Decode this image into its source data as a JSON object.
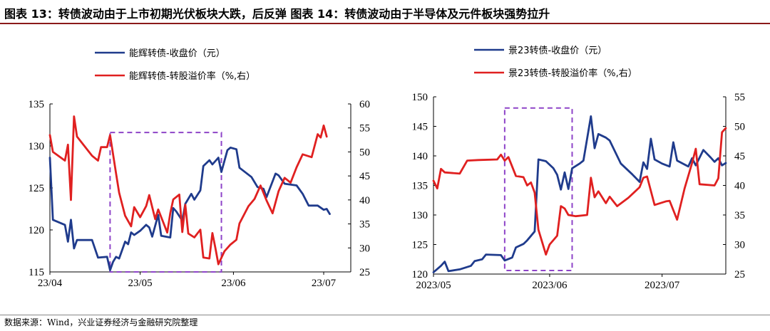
{
  "header": {
    "title": "图表 13：转债波动由于上市初期光伏板块大跌，后反弹 图表 14：转债波动由于半导体及元件板块强势拉升"
  },
  "footer": {
    "source": "数据来源：Wind，兴业证券经济与金融研究院整理"
  },
  "chart_data": [
    {
      "type": "line",
      "dual_axis": true,
      "legend_position": "top",
      "grid": false,
      "xlim": [
        "2023-04-01",
        "2023-07-10"
      ],
      "xticks": [
        {
          "date": "2023-04-01",
          "label": "23/04"
        },
        {
          "date": "2023-05-01",
          "label": "23/05"
        },
        {
          "date": "2023-06-01",
          "label": "23/06"
        },
        {
          "date": "2023-07-01",
          "label": "23/07"
        }
      ],
      "y_left": {
        "lim": [
          115,
          135
        ],
        "ticks": [
          115,
          120,
          125,
          130,
          135
        ]
      },
      "y_right": {
        "lim": [
          25,
          60
        ],
        "ticks": [
          25,
          30,
          35,
          40,
          45,
          50,
          55,
          60
        ]
      },
      "highlight_box": {
        "x": [
          "2023-04-21",
          "2023-05-28"
        ],
        "y_left": [
          115,
          131.6
        ]
      },
      "series": [
        {
          "name": "能辉转债-收盘价（元）",
          "axis": "left",
          "color": "#1F3B8C",
          "points": [
            [
              "2023-04-01",
              128.6
            ],
            [
              "2023-04-02",
              121.2
            ],
            [
              "2023-04-06",
              120.6
            ],
            [
              "2023-04-07",
              118.6
            ],
            [
              "2023-04-08",
              121.2
            ],
            [
              "2023-04-09",
              117.8
            ],
            [
              "2023-04-10",
              118.8
            ],
            [
              "2023-04-15",
              118.8
            ],
            [
              "2023-04-17",
              116.7
            ],
            [
              "2023-04-20",
              116.8
            ],
            [
              "2023-04-21",
              115.2
            ],
            [
              "2023-04-22",
              116.2
            ],
            [
              "2023-04-23",
              116.8
            ],
            [
              "2023-04-24",
              116.6
            ],
            [
              "2023-04-26",
              118.6
            ],
            [
              "2023-04-27",
              118.3
            ],
            [
              "2023-04-28",
              119.7
            ],
            [
              "2023-04-29",
              119.4
            ],
            [
              "2023-05-01",
              119.9
            ],
            [
              "2023-05-03",
              120.6
            ],
            [
              "2023-05-04",
              120.3
            ],
            [
              "2023-05-05",
              119.2
            ],
            [
              "2023-05-07",
              121.8
            ],
            [
              "2023-05-08",
              119.3
            ],
            [
              "2023-05-11",
              119.1
            ],
            [
              "2023-05-12",
              122.6
            ],
            [
              "2023-05-13",
              122.2
            ],
            [
              "2023-05-15",
              121.1
            ],
            [
              "2023-05-16",
              123.1
            ],
            [
              "2023-05-18",
              124.3
            ],
            [
              "2023-05-19",
              123.6
            ],
            [
              "2023-05-21",
              124.7
            ],
            [
              "2023-05-22",
              127.6
            ],
            [
              "2023-05-24",
              128.3
            ],
            [
              "2023-05-25",
              127.8
            ],
            [
              "2023-05-27",
              128.6
            ],
            [
              "2023-05-28",
              126.9
            ],
            [
              "2023-05-30",
              129.5
            ],
            [
              "2023-05-31",
              129.8
            ],
            [
              "2023-06-02",
              129.6
            ],
            [
              "2023-06-03",
              127.4
            ],
            [
              "2023-06-07",
              126.3
            ],
            [
              "2023-06-09",
              125.1
            ],
            [
              "2023-06-11",
              124.9
            ],
            [
              "2023-06-12",
              123.9
            ],
            [
              "2023-06-15",
              126.7
            ],
            [
              "2023-06-16",
              126.5
            ],
            [
              "2023-06-18",
              125.5
            ],
            [
              "2023-06-22",
              125.3
            ],
            [
              "2023-06-24",
              124.3
            ],
            [
              "2023-06-26",
              122.9
            ],
            [
              "2023-06-29",
              122.9
            ],
            [
              "2023-07-01",
              122.4
            ],
            [
              "2023-07-02",
              122.5
            ],
            [
              "2023-07-03",
              121.9
            ]
          ]
        },
        {
          "name": "能辉转债-转股溢价率（%,右）",
          "axis": "right",
          "color": "#E02020",
          "points": [
            [
              "2023-04-01",
              53.5
            ],
            [
              "2023-04-02",
              50.0
            ],
            [
              "2023-04-06",
              48.2
            ],
            [
              "2023-04-07",
              51.5
            ],
            [
              "2023-04-08",
              40.0
            ],
            [
              "2023-04-09",
              57.4
            ],
            [
              "2023-04-10",
              53.2
            ],
            [
              "2023-04-15",
              49.2
            ],
            [
              "2023-04-17",
              48.2
            ],
            [
              "2023-04-18",
              51.0
            ],
            [
              "2023-04-20",
              51.0
            ],
            [
              "2023-04-21",
              53.5
            ],
            [
              "2023-04-23",
              45.5
            ],
            [
              "2023-04-24",
              41.5
            ],
            [
              "2023-04-26",
              36.7
            ],
            [
              "2023-04-28",
              34.5
            ],
            [
              "2023-04-29",
              38.5
            ],
            [
              "2023-05-01",
              36.4
            ],
            [
              "2023-05-03",
              38.7
            ],
            [
              "2023-05-04",
              41.0
            ],
            [
              "2023-05-06",
              36.0
            ],
            [
              "2023-05-07",
              38.0
            ],
            [
              "2023-05-10",
              33.2
            ],
            [
              "2023-05-11",
              37.2
            ],
            [
              "2023-05-12",
              40.1
            ],
            [
              "2023-05-14",
              41.1
            ],
            [
              "2023-05-15",
              33.3
            ],
            [
              "2023-05-16",
              39.0
            ],
            [
              "2023-05-17",
              33.0
            ],
            [
              "2023-05-19",
              32.2
            ],
            [
              "2023-05-21",
              33.8
            ],
            [
              "2023-05-22",
              28.0
            ],
            [
              "2023-05-24",
              27.8
            ],
            [
              "2023-05-25",
              33.1
            ],
            [
              "2023-05-26",
              30.0
            ],
            [
              "2023-05-27",
              26.6
            ],
            [
              "2023-05-29",
              29.3
            ],
            [
              "2023-05-31",
              30.7
            ],
            [
              "2023-06-02",
              31.7
            ],
            [
              "2023-06-03",
              35.1
            ],
            [
              "2023-06-06",
              38.7
            ],
            [
              "2023-06-08",
              40.2
            ],
            [
              "2023-06-10",
              43.0
            ],
            [
              "2023-06-12",
              39.9
            ],
            [
              "2023-06-14",
              37.2
            ],
            [
              "2023-06-16",
              41.8
            ],
            [
              "2023-06-18",
              44.6
            ],
            [
              "2023-06-20",
              43.6
            ],
            [
              "2023-06-22",
              46.8
            ],
            [
              "2023-06-24",
              49.5
            ],
            [
              "2023-06-27",
              48.9
            ],
            [
              "2023-06-29",
              53.7
            ],
            [
              "2023-06-30",
              53.0
            ],
            [
              "2023-07-01",
              55.5
            ],
            [
              "2023-07-02",
              53.2
            ]
          ]
        }
      ]
    },
    {
      "type": "line",
      "dual_axis": true,
      "legend_position": "top",
      "grid": false,
      "xlim": [
        "2023-05-01",
        "2023-07-18"
      ],
      "xticks": [
        {
          "date": "2023-05-01",
          "label": "2023/05"
        },
        {
          "date": "2023-06-01",
          "label": "2023/06"
        },
        {
          "date": "2023-07-01",
          "label": "2023/07"
        }
      ],
      "y_left": {
        "lim": [
          120,
          150
        ],
        "ticks": [
          120,
          125,
          130,
          135,
          140,
          145,
          150
        ]
      },
      "y_right": {
        "lim": [
          25,
          55
        ],
        "ticks": [
          25,
          30,
          35,
          40,
          45,
          50,
          55
        ]
      },
      "highlight_box": {
        "x": [
          "2023-05-20",
          "2023-06-07"
        ],
        "y_left": [
          120.6,
          148.1
        ]
      },
      "series": [
        {
          "name": "景23转债-收盘价（元）",
          "axis": "left",
          "color": "#1F3B8C",
          "points": [
            [
              "2023-05-01",
              120.3
            ],
            [
              "2023-05-03",
              121.4
            ],
            [
              "2023-05-04",
              122.1
            ],
            [
              "2023-05-05",
              120.5
            ],
            [
              "2023-05-08",
              120.8
            ],
            [
              "2023-05-11",
              121.4
            ],
            [
              "2023-05-12",
              122.2
            ],
            [
              "2023-05-14",
              122.5
            ],
            [
              "2023-05-15",
              123.3
            ],
            [
              "2023-05-19",
              123.2
            ],
            [
              "2023-05-20",
              122.3
            ],
            [
              "2023-05-22",
              122.8
            ],
            [
              "2023-05-23",
              124.5
            ],
            [
              "2023-05-25",
              125.1
            ],
            [
              "2023-05-26",
              125.7
            ],
            [
              "2023-05-28",
              127.2
            ],
            [
              "2023-05-29",
              139.4
            ],
            [
              "2023-05-31",
              139.1
            ],
            [
              "2023-06-02",
              137.9
            ],
            [
              "2023-06-03",
              136.8
            ],
            [
              "2023-06-04",
              134.3
            ],
            [
              "2023-06-05",
              137.2
            ],
            [
              "2023-06-06",
              134.4
            ],
            [
              "2023-06-07",
              137.9
            ],
            [
              "2023-06-09",
              138.7
            ],
            [
              "2023-06-10",
              139.2
            ],
            [
              "2023-06-12",
              146.7
            ],
            [
              "2023-06-13",
              141.3
            ],
            [
              "2023-06-14",
              143.7
            ],
            [
              "2023-06-16",
              143.1
            ],
            [
              "2023-06-17",
              142.6
            ],
            [
              "2023-06-20",
              138.7
            ],
            [
              "2023-06-23",
              136.9
            ],
            [
              "2023-06-25",
              135.6
            ],
            [
              "2023-06-26",
              138.9
            ],
            [
              "2023-06-27",
              137.8
            ],
            [
              "2023-06-28",
              142.9
            ],
            [
              "2023-06-29",
              139.4
            ],
            [
              "2023-07-01",
              138.7
            ],
            [
              "2023-07-03",
              138.2
            ],
            [
              "2023-07-04",
              142.3
            ],
            [
              "2023-07-05",
              139.2
            ],
            [
              "2023-07-08",
              138.2
            ],
            [
              "2023-07-09",
              139.6
            ],
            [
              "2023-07-10",
              138.4
            ],
            [
              "2023-07-12",
              141.0
            ],
            [
              "2023-07-14",
              139.7
            ],
            [
              "2023-07-15",
              139.0
            ],
            [
              "2023-07-16",
              139.6
            ],
            [
              "2023-07-17",
              138.4
            ],
            [
              "2023-07-18",
              138.8
            ]
          ]
        },
        {
          "name": "景23转债-转股溢价率（%,右）",
          "axis": "right",
          "color": "#E02020",
          "points": [
            [
              "2023-05-01",
              40.8
            ],
            [
              "2023-05-02",
              39.5
            ],
            [
              "2023-05-03",
              42.8
            ],
            [
              "2023-05-04",
              42.2
            ],
            [
              "2023-05-08",
              42.0
            ],
            [
              "2023-05-10",
              44.2
            ],
            [
              "2023-05-13",
              44.3
            ],
            [
              "2023-05-18",
              44.4
            ],
            [
              "2023-05-19",
              45.2
            ],
            [
              "2023-05-20",
              44.2
            ],
            [
              "2023-05-21",
              44.8
            ],
            [
              "2023-05-23",
              41.6
            ],
            [
              "2023-05-25",
              41.4
            ],
            [
              "2023-05-26",
              40.0
            ],
            [
              "2023-05-27",
              40.5
            ],
            [
              "2023-05-28",
              38.8
            ],
            [
              "2023-05-29",
              32.5
            ],
            [
              "2023-05-31",
              28.3
            ],
            [
              "2023-06-01",
              30.0
            ],
            [
              "2023-06-03",
              31.5
            ],
            [
              "2023-06-04",
              36.5
            ],
            [
              "2023-06-05",
              36.1
            ],
            [
              "2023-06-06",
              35.0
            ],
            [
              "2023-06-08",
              34.8
            ],
            [
              "2023-06-11",
              35.0
            ],
            [
              "2023-06-12",
              41.3
            ],
            [
              "2023-06-13",
              38.0
            ],
            [
              "2023-06-14",
              39.0
            ],
            [
              "2023-06-16",
              37.0
            ],
            [
              "2023-06-17",
              38.1
            ],
            [
              "2023-06-19",
              36.5
            ],
            [
              "2023-06-22",
              37.9
            ],
            [
              "2023-06-25",
              39.7
            ],
            [
              "2023-06-26",
              41.3
            ],
            [
              "2023-06-27",
              41.5
            ],
            [
              "2023-06-29",
              36.7
            ],
            [
              "2023-07-02",
              37.3
            ],
            [
              "2023-07-03",
              37.4
            ],
            [
              "2023-07-05",
              34.2
            ],
            [
              "2023-07-07",
              39.5
            ],
            [
              "2023-07-09",
              43.8
            ],
            [
              "2023-07-10",
              46.2
            ],
            [
              "2023-07-11",
              40.2
            ],
            [
              "2023-07-15",
              40.0
            ],
            [
              "2023-07-16",
              41.2
            ],
            [
              "2023-07-17",
              49.0
            ],
            [
              "2023-07-18",
              49.7
            ]
          ]
        }
      ]
    }
  ]
}
